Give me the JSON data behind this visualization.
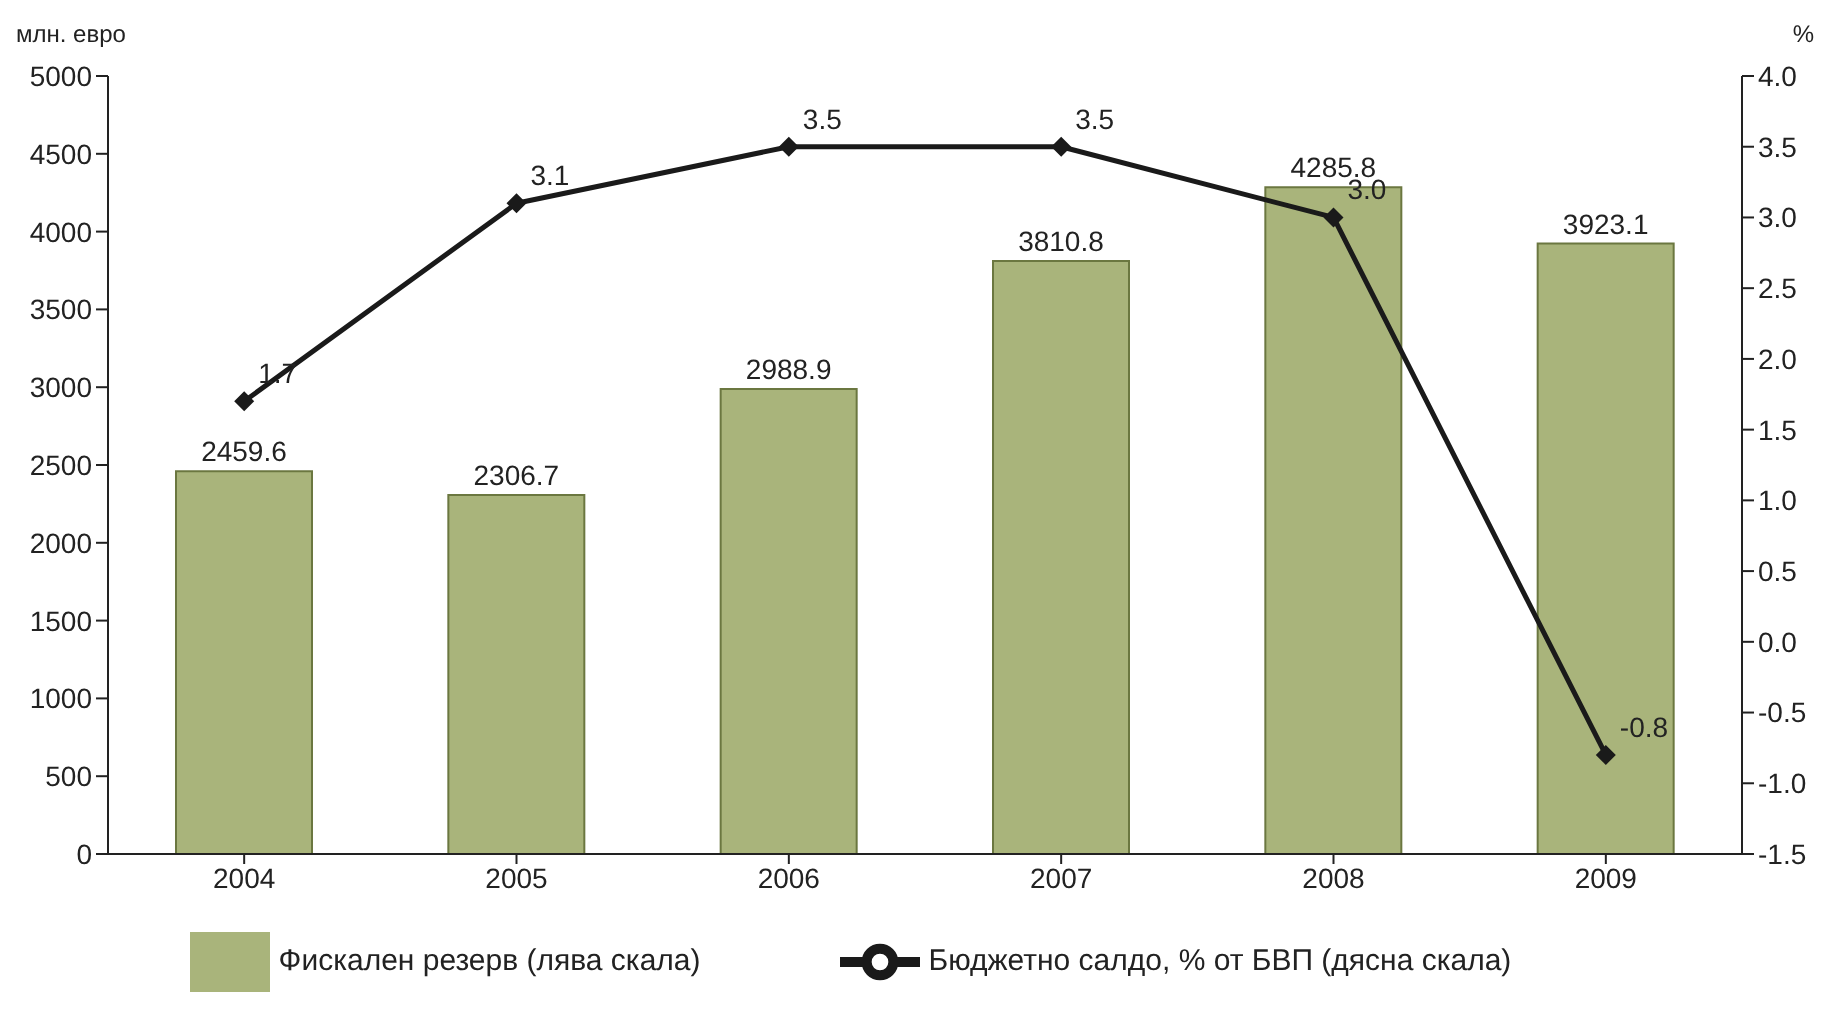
{
  "chart_data": {
    "type": "bar",
    "categories": [
      "2004",
      "2005",
      "2006",
      "2007",
      "2008",
      "2009"
    ],
    "ylabel": "млн. евро",
    "y2label": "%",
    "series": [
      {
        "name": "Фискален резерв (лява скала)",
        "color": "#a9b47b",
        "values": [
          2459.6,
          2306.7,
          2988.9,
          3810.8,
          4285.8,
          3923.1
        ],
        "value_labels": [
          "2459.6",
          "2306.7",
          "2988.9",
          "3810.8",
          "4285.8",
          "3923.1"
        ]
      },
      {
        "name": "Бюджетно салдо, % от БВП (дясна скала)",
        "type": "line",
        "axis": "y2",
        "color": "#1a1a1a",
        "values": [
          1.7,
          3.1,
          3.5,
          3.5,
          3.0,
          -0.8
        ],
        "value_labels": [
          "1.7",
          "3.1",
          "3.5",
          "3.5",
          "3.0",
          "-0.8"
        ]
      }
    ],
    "ylim": [
      0,
      5000
    ],
    "yticks": [
      0,
      500,
      1000,
      1500,
      2000,
      2500,
      3000,
      3500,
      4000,
      4500,
      5000
    ],
    "y2lim": [
      -1.5,
      4.0
    ],
    "y2ticks": [
      -1.5,
      {
        "value": -1,
        "label": "-1.0"
      },
      -0.5,
      {
        "value": 0,
        "label": "0.0"
      },
      0.5,
      {
        "value": 1,
        "label": "1.0"
      },
      1.5,
      {
        "value": 2,
        "label": "2.0"
      },
      2.5,
      {
        "value": 3,
        "label": "3.0"
      },
      3.5,
      {
        "value": 4,
        "label": "4.0"
      }
    ],
    "marker": "diamond",
    "line_style": "solid",
    "grid": false,
    "legend": "bottom"
  }
}
